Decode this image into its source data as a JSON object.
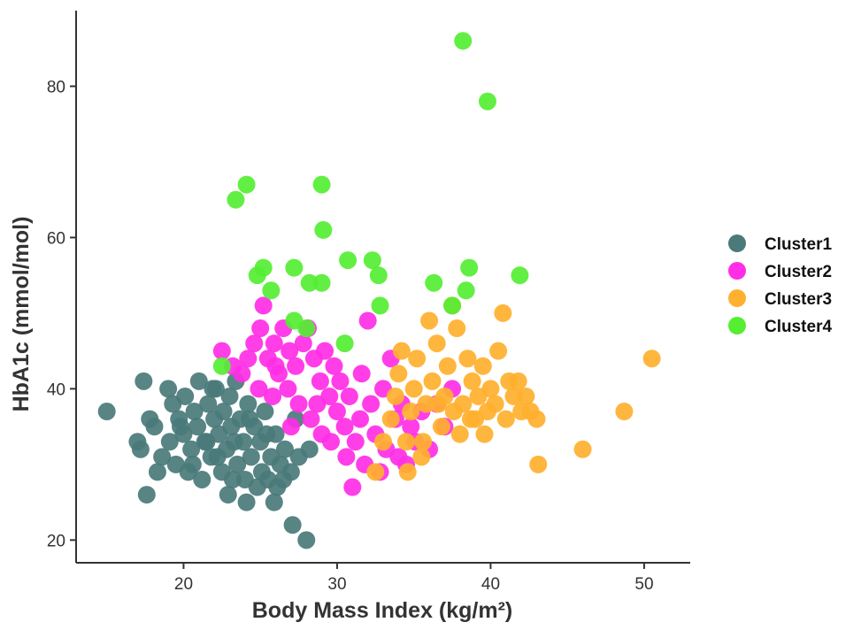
{
  "chart_data": {
    "type": "scatter",
    "title": "",
    "xlabel": "Body Mass Index (kg/m²)",
    "ylabel": "HbA1c (mmol/mol)",
    "xlim": [
      13,
      53
    ],
    "ylim": [
      17,
      90
    ],
    "x_ticks": [
      20,
      30,
      40,
      50
    ],
    "y_ticks": [
      20,
      40,
      60,
      80
    ],
    "grid": false,
    "legend_position": "right",
    "series": [
      {
        "name": "Cluster1",
        "color": "#4a7a7a",
        "points": [
          [
            15.0,
            37
          ],
          [
            17.4,
            41
          ],
          [
            17.6,
            26
          ],
          [
            17.0,
            33
          ],
          [
            17.2,
            32
          ],
          [
            17.8,
            36
          ],
          [
            18.1,
            35
          ],
          [
            18.3,
            29
          ],
          [
            18.6,
            31
          ],
          [
            19.0,
            40
          ],
          [
            19.1,
            33
          ],
          [
            19.3,
            38
          ],
          [
            19.5,
            30
          ],
          [
            19.7,
            36
          ],
          [
            20.0,
            34
          ],
          [
            20.1,
            39
          ],
          [
            20.3,
            29
          ],
          [
            20.5,
            32
          ],
          [
            20.7,
            37
          ],
          [
            20.9,
            35
          ],
          [
            21.0,
            41
          ],
          [
            21.2,
            28
          ],
          [
            21.4,
            33
          ],
          [
            21.6,
            38
          ],
          [
            21.8,
            31
          ],
          [
            22.0,
            36
          ],
          [
            22.1,
            40
          ],
          [
            22.3,
            34
          ],
          [
            22.5,
            29
          ],
          [
            22.6,
            37
          ],
          [
            22.8,
            32
          ],
          [
            23.0,
            39
          ],
          [
            23.1,
            35
          ],
          [
            23.2,
            28
          ],
          [
            23.4,
            41
          ],
          [
            23.5,
            30
          ],
          [
            23.7,
            36
          ],
          [
            23.9,
            33
          ],
          [
            24.0,
            28
          ],
          [
            24.1,
            25
          ],
          [
            24.2,
            38
          ],
          [
            24.4,
            31
          ],
          [
            24.6,
            35
          ],
          [
            24.8,
            27
          ],
          [
            25.0,
            33
          ],
          [
            25.1,
            29
          ],
          [
            25.3,
            37
          ],
          [
            25.5,
            28
          ],
          [
            25.7,
            31
          ],
          [
            25.9,
            25
          ],
          [
            26.0,
            34
          ],
          [
            26.1,
            27
          ],
          [
            26.3,
            30
          ],
          [
            26.6,
            32
          ],
          [
            27.0,
            29
          ],
          [
            27.1,
            22
          ],
          [
            27.3,
            36
          ],
          [
            27.5,
            31
          ],
          [
            28.0,
            20
          ],
          [
            28.2,
            32
          ],
          [
            21.5,
            33
          ],
          [
            22.2,
            31
          ],
          [
            23.3,
            33
          ],
          [
            24.3,
            36
          ],
          [
            20.6,
            30
          ],
          [
            19.8,
            35
          ],
          [
            21.9,
            40
          ],
          [
            25.4,
            34
          ],
          [
            26.5,
            28
          ],
          [
            22.9,
            26
          ]
        ]
      },
      {
        "name": "Cluster2",
        "color": "#ff2ee6",
        "points": [
          [
            22.5,
            45
          ],
          [
            23.2,
            43
          ],
          [
            23.8,
            42
          ],
          [
            24.2,
            44
          ],
          [
            24.6,
            46
          ],
          [
            25.0,
            48
          ],
          [
            25.2,
            51
          ],
          [
            25.5,
            44
          ],
          [
            25.9,
            46
          ],
          [
            26.2,
            42
          ],
          [
            26.5,
            48
          ],
          [
            26.9,
            45
          ],
          [
            27.3,
            43
          ],
          [
            27.8,
            46
          ],
          [
            28.1,
            48
          ],
          [
            28.5,
            44
          ],
          [
            28.9,
            41
          ],
          [
            29.2,
            45
          ],
          [
            29.5,
            39
          ],
          [
            29.8,
            43
          ],
          [
            30.0,
            37
          ],
          [
            30.2,
            41
          ],
          [
            30.5,
            35
          ],
          [
            30.8,
            39
          ],
          [
            31.0,
            27
          ],
          [
            31.2,
            33
          ],
          [
            31.5,
            36
          ],
          [
            31.8,
            30
          ],
          [
            32.0,
            49
          ],
          [
            32.2,
            38
          ],
          [
            32.5,
            34
          ],
          [
            32.8,
            29
          ],
          [
            33.0,
            40
          ],
          [
            33.2,
            32
          ],
          [
            33.5,
            44
          ],
          [
            33.8,
            36
          ],
          [
            34.0,
            31
          ],
          [
            34.2,
            38
          ],
          [
            34.5,
            30
          ],
          [
            34.8,
            35
          ],
          [
            35.1,
            33
          ],
          [
            35.5,
            37
          ],
          [
            36.0,
            32
          ],
          [
            36.5,
            38
          ],
          [
            37.0,
            35
          ],
          [
            37.5,
            40
          ],
          [
            27.5,
            38
          ],
          [
            28.3,
            36
          ],
          [
            29.0,
            34
          ],
          [
            26.8,
            40
          ],
          [
            25.8,
            39
          ],
          [
            27.0,
            35
          ],
          [
            28.7,
            38
          ],
          [
            29.6,
            33
          ],
          [
            30.6,
            31
          ],
          [
            31.6,
            42
          ],
          [
            24.9,
            40
          ],
          [
            26.0,
            43
          ]
        ]
      },
      {
        "name": "Cluster3",
        "color": "#ffb02e",
        "points": [
          [
            32.5,
            29
          ],
          [
            33.0,
            33
          ],
          [
            33.5,
            36
          ],
          [
            33.8,
            39
          ],
          [
            34.0,
            42
          ],
          [
            34.2,
            45
          ],
          [
            34.5,
            33
          ],
          [
            34.8,
            37
          ],
          [
            35.0,
            40
          ],
          [
            35.2,
            44
          ],
          [
            35.5,
            31
          ],
          [
            35.8,
            38
          ],
          [
            36.0,
            49
          ],
          [
            36.2,
            41
          ],
          [
            36.5,
            46
          ],
          [
            36.8,
            35
          ],
          [
            37.0,
            39
          ],
          [
            37.2,
            43
          ],
          [
            37.5,
            51
          ],
          [
            37.8,
            48
          ],
          [
            38.0,
            34
          ],
          [
            38.2,
            38
          ],
          [
            38.5,
            44
          ],
          [
            38.8,
            41
          ],
          [
            39.0,
            36
          ],
          [
            39.2,
            39
          ],
          [
            39.5,
            43
          ],
          [
            39.8,
            37
          ],
          [
            40.0,
            40
          ],
          [
            40.3,
            38
          ],
          [
            40.5,
            45
          ],
          [
            40.8,
            50
          ],
          [
            41.0,
            36
          ],
          [
            41.2,
            41
          ],
          [
            41.5,
            39
          ],
          [
            41.8,
            41
          ],
          [
            42.0,
            37
          ],
          [
            42.3,
            39
          ],
          [
            42.6,
            37
          ],
          [
            43.0,
            36
          ],
          [
            43.1,
            30
          ],
          [
            46.0,
            32
          ],
          [
            48.7,
            37
          ],
          [
            50.5,
            44
          ],
          [
            36.6,
            38
          ],
          [
            37.6,
            37
          ],
          [
            38.7,
            36
          ],
          [
            39.6,
            34
          ],
          [
            34.6,
            29
          ],
          [
            35.6,
            33
          ]
        ]
      },
      {
        "name": "Cluster4",
        "color": "#55ee33",
        "points": [
          [
            38.2,
            86
          ],
          [
            39.8,
            78
          ],
          [
            23.4,
            65
          ],
          [
            24.1,
            67
          ],
          [
            29.0,
            67
          ],
          [
            29.1,
            61
          ],
          [
            24.8,
            55
          ],
          [
            25.2,
            56
          ],
          [
            25.7,
            53
          ],
          [
            27.2,
            56
          ],
          [
            28.2,
            54
          ],
          [
            29.0,
            54
          ],
          [
            30.7,
            57
          ],
          [
            32.3,
            57
          ],
          [
            32.7,
            55
          ],
          [
            36.3,
            54
          ],
          [
            38.6,
            56
          ],
          [
            41.9,
            55
          ],
          [
            32.8,
            51
          ],
          [
            27.2,
            49
          ],
          [
            28.0,
            48
          ],
          [
            37.5,
            51
          ],
          [
            38.4,
            53
          ],
          [
            22.5,
            43
          ],
          [
            30.5,
            46
          ]
        ]
      }
    ]
  }
}
